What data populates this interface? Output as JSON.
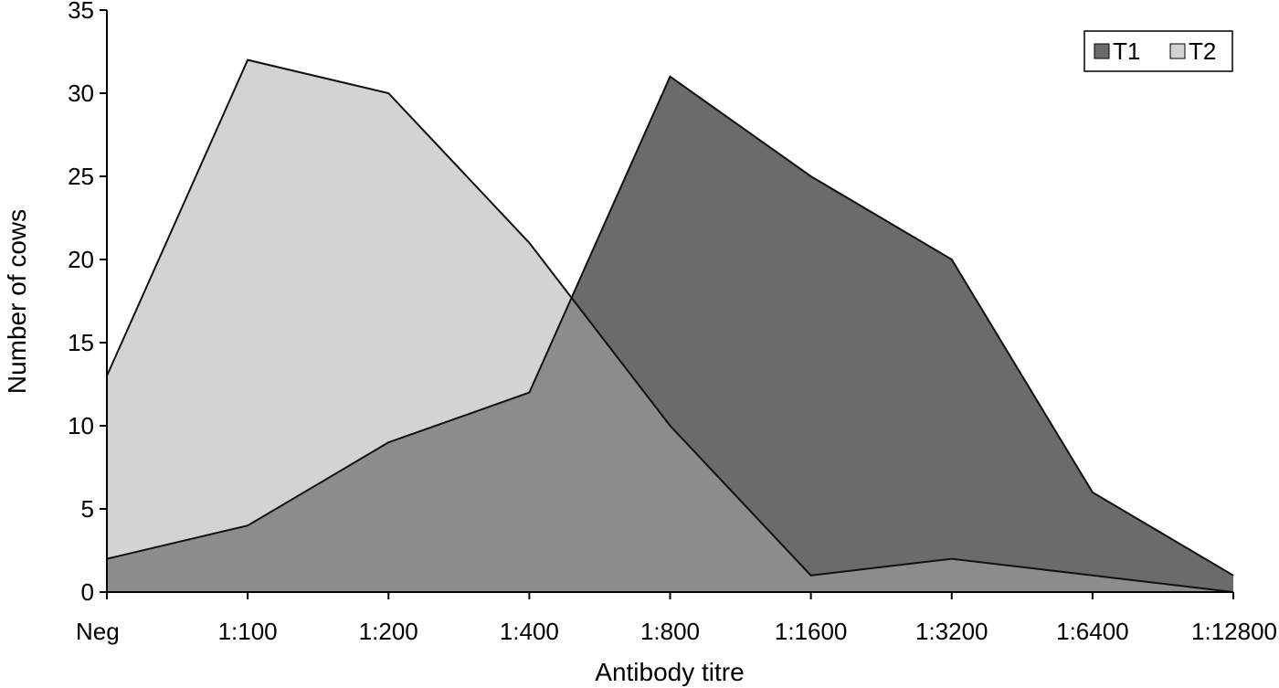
{
  "chart_data": {
    "type": "area",
    "title": "",
    "xlabel": "Antibody titre",
    "ylabel": "Number of cows",
    "categories": [
      "Neg",
      "1:100",
      "1:200",
      "1:400",
      "1:800",
      "1:1600",
      "1:3200",
      "1:6400",
      "1:12800"
    ],
    "ylim": [
      0,
      35
    ],
    "yticks": [
      0,
      5,
      10,
      15,
      20,
      25,
      30,
      35
    ],
    "grid": false,
    "legend_position": "top-right",
    "series": [
      {
        "name": "T1",
        "values": [
          2,
          4,
          9,
          12,
          31,
          25,
          20,
          6,
          1
        ],
        "color": "#6b6b6b"
      },
      {
        "name": "T2",
        "values": [
          13,
          32,
          30,
          21,
          10,
          1,
          2,
          1,
          0
        ],
        "color": "#d3d3d3"
      }
    ],
    "overlap_color": "#8c8c8c"
  }
}
